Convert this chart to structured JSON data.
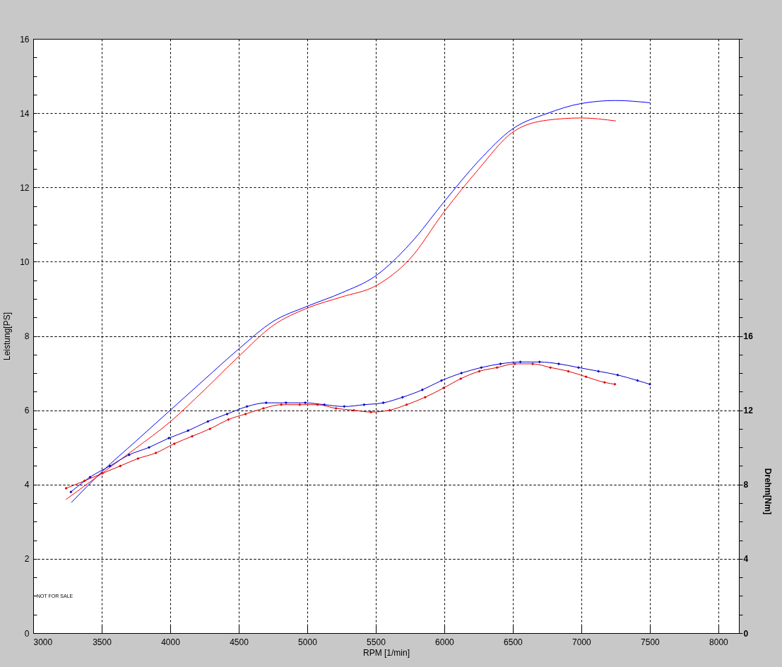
{
  "chart_data": {
    "type": "line",
    "xlabel": "RPM [1/min]",
    "ylabel": "Leistung[PS]",
    "y2label": "Drehm[Nm]",
    "annotations": [
      "NOT FOR SALE"
    ],
    "xlim": [
      3000,
      8150
    ],
    "xticks": [
      3000,
      3500,
      4000,
      4500,
      5000,
      5500,
      6000,
      6500,
      7000,
      7500,
      8000
    ],
    "ylim": [
      0,
      16
    ],
    "yticks": [
      0,
      {
        "value": 0.5,
        "label": null
      },
      {
        "value": 1,
        "label": null
      },
      {
        "value": 1.5,
        "label": null
      },
      2,
      {
        "value": 2.5,
        "label": null
      },
      {
        "value": 3,
        "label": null
      },
      {
        "value": 3.5,
        "label": null
      },
      4,
      {
        "value": 4.5,
        "label": null
      },
      {
        "value": 5,
        "label": null
      },
      {
        "value": 5.5,
        "label": null
      },
      6,
      {
        "value": 6.5,
        "label": null
      },
      {
        "value": 7,
        "label": null
      },
      {
        "value": 7.5,
        "label": null
      },
      8,
      {
        "value": 8.5,
        "label": null
      },
      {
        "value": 9,
        "label": null
      },
      {
        "value": 9.5,
        "label": null
      },
      10,
      {
        "value": 10.5,
        "label": null
      },
      {
        "value": 11,
        "label": null
      },
      {
        "value": 11.5,
        "label": null
      },
      12,
      {
        "value": 12.5,
        "label": null
      },
      {
        "value": 13,
        "label": null
      },
      {
        "value": 13.5,
        "label": null
      },
      14,
      {
        "value": 14.5,
        "label": null
      },
      {
        "value": 15,
        "label": null
      },
      {
        "value": 15.5,
        "label": null
      },
      16
    ],
    "y2lim": [
      0,
      32
    ],
    "y2ticks": [
      0,
      {
        "value": 1,
        "label": null
      },
      {
        "value": 2,
        "label": null
      },
      {
        "value": 3,
        "label": null
      },
      4,
      {
        "value": 5,
        "label": null
      },
      {
        "value": 6,
        "label": null
      },
      {
        "value": 7,
        "label": null
      },
      8,
      {
        "value": 9,
        "label": null
      },
      {
        "value": 10,
        "label": null
      },
      {
        "value": 11,
        "label": null
      },
      12,
      {
        "value": 13,
        "label": null
      },
      {
        "value": 14,
        "label": null
      },
      {
        "value": 15,
        "label": null
      },
      16,
      {
        "value": 17,
        "label": null
      },
      {
        "value": 18,
        "label": null
      },
      {
        "value": 19,
        "label": null
      },
      {
        "value": 20,
        "label": null
      },
      {
        "value": 21,
        "label": null
      },
      {
        "value": 22,
        "label": null
      },
      {
        "value": 23,
        "label": null
      },
      {
        "value": 24,
        "label": null
      },
      {
        "value": 25,
        "label": null
      },
      {
        "value": 26,
        "label": null
      },
      {
        "value": 27,
        "label": null
      },
      {
        "value": 28,
        "label": null
      },
      {
        "value": 29,
        "label": null
      },
      {
        "value": 30,
        "label": null
      },
      {
        "value": 31,
        "label": null
      },
      {
        "value": 32,
        "label": null
      }
    ],
    "grid": true,
    "series": [
      {
        "color": "#0000ff",
        "x": [
          3280,
          3500,
          3750,
          4000,
          4250,
          4500,
          4750,
          5000,
          5250,
          5500,
          5750,
          6000,
          6250,
          6500,
          6750,
          7000,
          7250,
          7500
        ],
        "values": [
          3.52,
          4.34,
          5.17,
          6.0,
          6.83,
          7.65,
          8.39,
          8.8,
          9.16,
          9.62,
          10.48,
          11.62,
          12.71,
          13.58,
          13.99,
          14.26,
          14.34,
          14.28
        ]
      },
      {
        "color": "#ff0000",
        "x": [
          3240,
          3500,
          3750,
          4000,
          4250,
          4500,
          4750,
          5000,
          5250,
          5500,
          5750,
          6000,
          6250,
          6500,
          6750,
          7000,
          7250
        ],
        "values": [
          3.6,
          4.3,
          4.98,
          5.69,
          6.55,
          7.45,
          8.28,
          8.75,
          9.05,
          9.35,
          10.08,
          11.35,
          12.49,
          13.49,
          13.81,
          13.87,
          13.79
        ]
      },
      {
        "color": "#0000cc",
        "axis": "y2",
        "marker": "diamond",
        "x": [
          3275,
          3415,
          3560,
          3700,
          3845,
          3990,
          4130,
          4275,
          4415,
          4560,
          4700,
          4845,
          4985,
          5125,
          5270,
          5415,
          5555,
          5695,
          5840,
          5980,
          6125,
          6270,
          6410,
          6555,
          6695,
          6835,
          6980,
          7125,
          7265,
          7410,
          7500
        ],
        "values": [
          7.6,
          8.4,
          9.0,
          9.6,
          10.0,
          10.5,
          10.9,
          11.4,
          11.8,
          12.2,
          12.4,
          12.4,
          12.4,
          12.3,
          12.2,
          12.3,
          12.4,
          12.7,
          13.1,
          13.6,
          14.0,
          14.3,
          14.5,
          14.6,
          14.6,
          14.5,
          14.3,
          14.1,
          13.9,
          13.6,
          13.4
        ]
      },
      {
        "color": "#dd0000",
        "axis": "y2",
        "marker": "diamond",
        "x": [
          3240,
          3375,
          3505,
          3635,
          3765,
          3895,
          4030,
          4160,
          4290,
          4425,
          4550,
          4680,
          4810,
          4945,
          5075,
          5210,
          5340,
          5465,
          5600,
          5725,
          5860,
          5995,
          6120,
          6255,
          6385,
          6515,
          6645,
          6775,
          6905,
          7035,
          7170,
          7245
        ],
        "values": [
          7.8,
          8.2,
          8.6,
          9.0,
          9.4,
          9.7,
          10.2,
          10.6,
          11.0,
          11.5,
          11.8,
          12.1,
          12.3,
          12.3,
          12.3,
          12.1,
          12.0,
          11.9,
          12.0,
          12.3,
          12.7,
          13.2,
          13.7,
          14.1,
          14.3,
          14.5,
          14.5,
          14.3,
          14.1,
          13.8,
          13.5,
          13.4
        ]
      }
    ]
  }
}
